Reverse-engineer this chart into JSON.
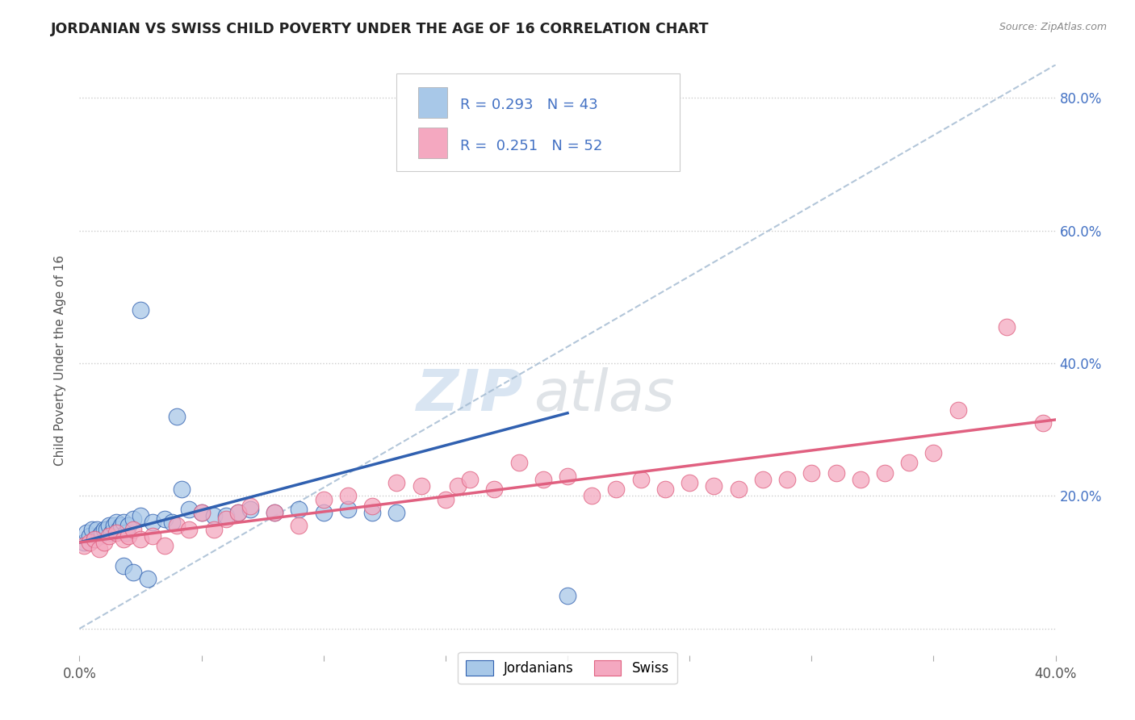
{
  "title": "JORDANIAN VS SWISS CHILD POVERTY UNDER THE AGE OF 16 CORRELATION CHART",
  "source": "Source: ZipAtlas.com",
  "ylabel": "Child Poverty Under the Age of 16",
  "xlim": [
    0.0,
    0.4
  ],
  "ylim": [
    -0.04,
    0.85
  ],
  "jordan_color": "#a8c8e8",
  "swiss_color": "#f4a8c0",
  "jordan_line_color": "#3060b0",
  "swiss_line_color": "#e06080",
  "ref_line_color": "#a0b8d0",
  "jordan_R": 0.293,
  "jordan_N": 43,
  "swiss_R": 0.251,
  "swiss_N": 52,
  "jordan_trend_x": [
    0.0,
    0.2
  ],
  "jordan_trend_y": [
    0.13,
    0.325
  ],
  "swiss_trend_x": [
    0.0,
    0.4
  ],
  "swiss_trend_y": [
    0.13,
    0.315
  ],
  "ref_line_x": [
    0.0,
    0.4
  ],
  "ref_line_y": [
    0.0,
    0.85
  ],
  "jordan_points_x": [
    0.002,
    0.003,
    0.004,
    0.005,
    0.006,
    0.007,
    0.008,
    0.009,
    0.01,
    0.011,
    0.012,
    0.013,
    0.014,
    0.015,
    0.016,
    0.017,
    0.018,
    0.019,
    0.02,
    0.022,
    0.025,
    0.03,
    0.035,
    0.038,
    0.045,
    0.05,
    0.055,
    0.06,
    0.065,
    0.07,
    0.08,
    0.09,
    0.1,
    0.11,
    0.12,
    0.13,
    0.025,
    0.04,
    0.042,
    0.018,
    0.022,
    0.028,
    0.2
  ],
  "jordan_points_y": [
    0.13,
    0.145,
    0.14,
    0.15,
    0.135,
    0.15,
    0.14,
    0.145,
    0.15,
    0.15,
    0.155,
    0.145,
    0.155,
    0.16,
    0.15,
    0.155,
    0.16,
    0.145,
    0.155,
    0.165,
    0.17,
    0.16,
    0.165,
    0.16,
    0.18,
    0.175,
    0.17,
    0.17,
    0.175,
    0.18,
    0.175,
    0.18,
    0.175,
    0.18,
    0.175,
    0.175,
    0.48,
    0.32,
    0.21,
    0.095,
    0.085,
    0.075,
    0.05
  ],
  "swiss_points_x": [
    0.002,
    0.004,
    0.006,
    0.008,
    0.01,
    0.012,
    0.015,
    0.018,
    0.02,
    0.022,
    0.025,
    0.03,
    0.035,
    0.04,
    0.045,
    0.05,
    0.055,
    0.06,
    0.065,
    0.07,
    0.08,
    0.09,
    0.1,
    0.11,
    0.12,
    0.13,
    0.14,
    0.15,
    0.155,
    0.16,
    0.17,
    0.18,
    0.19,
    0.2,
    0.21,
    0.22,
    0.23,
    0.24,
    0.25,
    0.26,
    0.27,
    0.28,
    0.29,
    0.3,
    0.31,
    0.32,
    0.33,
    0.34,
    0.35,
    0.36,
    0.38,
    0.395
  ],
  "swiss_points_y": [
    0.125,
    0.13,
    0.135,
    0.12,
    0.13,
    0.14,
    0.145,
    0.135,
    0.14,
    0.15,
    0.135,
    0.14,
    0.125,
    0.155,
    0.15,
    0.175,
    0.15,
    0.165,
    0.175,
    0.185,
    0.175,
    0.155,
    0.195,
    0.2,
    0.185,
    0.22,
    0.215,
    0.195,
    0.215,
    0.225,
    0.21,
    0.25,
    0.225,
    0.23,
    0.2,
    0.21,
    0.225,
    0.21,
    0.22,
    0.215,
    0.21,
    0.225,
    0.225,
    0.235,
    0.235,
    0.225,
    0.235,
    0.25,
    0.265,
    0.33,
    0.455,
    0.31
  ]
}
